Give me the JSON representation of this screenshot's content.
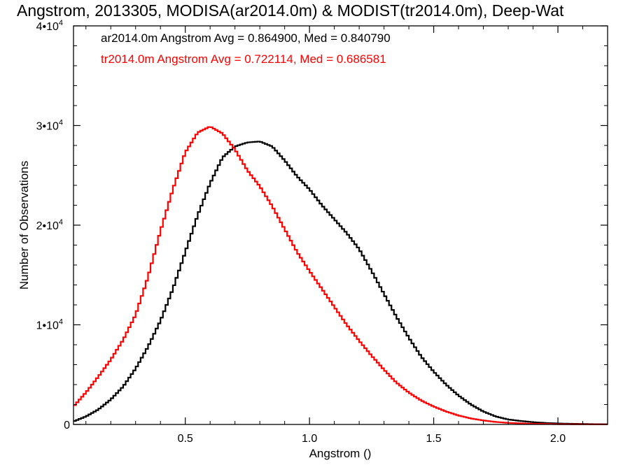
{
  "chart_data": {
    "type": "line",
    "title": "Angstrom, 2013305, MODISA(ar2014.0m) & MODIST(tr2014.0m), Deep-Wat",
    "xlabel": "Angstrom ()",
    "ylabel": "Number of Observations",
    "xlim": [
      0.05,
      2.2
    ],
    "ylim": [
      0,
      40000
    ],
    "x_ticks": [
      {
        "value": 0.5,
        "label": "0.5"
      },
      {
        "value": 1.0,
        "label": "1.0"
      },
      {
        "value": 1.5,
        "label": "1.5"
      },
      {
        "value": 2.0,
        "label": "2.0"
      }
    ],
    "y_ticks": [
      {
        "value": 0,
        "mantissa": "0",
        "exponent": ""
      },
      {
        "value": 10000,
        "mantissa": "1•10",
        "exponent": "4"
      },
      {
        "value": 20000,
        "mantissa": "2•10",
        "exponent": "4"
      },
      {
        "value": 30000,
        "mantissa": "3•10",
        "exponent": "4"
      },
      {
        "value": 40000,
        "mantissa": "4•10",
        "exponent": "4"
      }
    ],
    "grid": false,
    "legend_position": "top-left",
    "step": true,
    "series": [
      {
        "name": "ar2014.0m",
        "legend": "ar2014.0m Angstrom Avg = 0.864900, Med = 0.840790",
        "color": "#000000",
        "x": [
          0.05,
          0.1,
          0.15,
          0.2,
          0.25,
          0.3,
          0.35,
          0.4,
          0.45,
          0.5,
          0.55,
          0.6,
          0.65,
          0.7,
          0.75,
          0.8,
          0.85,
          0.9,
          0.95,
          1.0,
          1.05,
          1.1,
          1.15,
          1.2,
          1.25,
          1.3,
          1.35,
          1.4,
          1.45,
          1.5,
          1.55,
          1.6,
          1.65,
          1.7,
          1.75,
          1.8,
          1.85,
          1.9,
          1.95,
          2.0,
          2.05,
          2.1,
          2.15,
          2.2
        ],
        "y": [
          300,
          800,
          1500,
          2500,
          3800,
          5600,
          7800,
          10400,
          13600,
          17300,
          21000,
          24200,
          26800,
          27900,
          28300,
          28400,
          27900,
          26500,
          24900,
          23600,
          22000,
          20600,
          19200,
          17600,
          15400,
          13100,
          10800,
          8700,
          6800,
          5300,
          4000,
          2900,
          2000,
          1300,
          800,
          500,
          350,
          230,
          150,
          100,
          70,
          50,
          30,
          20
        ]
      },
      {
        "name": "tr2014.0m",
        "legend": "tr2014.0m Angstrom Avg = 0.722114, Med = 0.686581",
        "color": "#ff0000",
        "x": [
          0.05,
          0.1,
          0.15,
          0.2,
          0.25,
          0.3,
          0.35,
          0.4,
          0.45,
          0.5,
          0.55,
          0.6,
          0.65,
          0.7,
          0.75,
          0.8,
          0.85,
          0.9,
          0.95,
          1.0,
          1.05,
          1.1,
          1.15,
          1.2,
          1.25,
          1.3,
          1.35,
          1.4,
          1.45,
          1.5,
          1.55,
          1.6,
          1.65,
          1.7,
          1.75,
          1.8,
          1.85,
          1.9,
          1.95,
          2.0,
          2.05,
          2.1,
          2.15,
          2.2
        ],
        "y": [
          1800,
          3200,
          4800,
          6500,
          8500,
          11000,
          14800,
          19400,
          23600,
          27300,
          29300,
          29900,
          29200,
          27600,
          25500,
          23900,
          21900,
          19600,
          17300,
          15400,
          13600,
          11800,
          10000,
          8400,
          6900,
          5500,
          4200,
          3200,
          2400,
          1800,
          1300,
          900,
          600,
          400,
          250,
          160,
          110,
          70,
          50,
          30,
          20,
          15,
          10,
          5
        ]
      }
    ]
  }
}
